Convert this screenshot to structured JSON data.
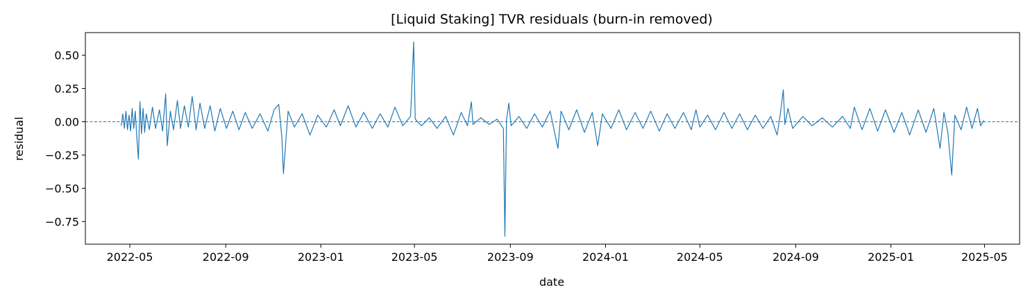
{
  "chart_data": {
    "type": "line",
    "title": "[Liquid Staking] TVR residuals (burn-in removed)",
    "xlabel": "date",
    "ylabel": "residual",
    "x_range": [
      "2022-03-05",
      "2025-06-15"
    ],
    "ylim": [
      -0.92,
      0.67
    ],
    "x_ticks": [
      "2022-05-01",
      "2022-09-01",
      "2023-01-01",
      "2023-05-01",
      "2023-09-01",
      "2024-01-01",
      "2024-05-01",
      "2024-09-01",
      "2025-01-01",
      "2025-05-01"
    ],
    "x_tick_labels": [
      "2022-05",
      "2022-09",
      "2023-01",
      "2023-05",
      "2023-09",
      "2024-01",
      "2024-05",
      "2024-09",
      "2025-01",
      "2025-05"
    ],
    "y_ticks": [
      0.5,
      0.25,
      0.0,
      -0.25,
      -0.5,
      -0.75
    ],
    "y_tick_labels": [
      "0.50",
      "0.25",
      "0.00",
      "−0.25",
      "−0.50",
      "−0.75"
    ],
    "grid": false,
    "reference_line": {
      "y": 0,
      "style": "dashed",
      "color": "#1f77b4"
    },
    "series": [
      {
        "color": "#1f77b4",
        "points": [
          [
            "2022-04-20",
            -0.03
          ],
          [
            "2022-04-22",
            0.06
          ],
          [
            "2022-04-24",
            -0.05
          ],
          [
            "2022-04-26",
            0.08
          ],
          [
            "2022-04-28",
            -0.06
          ],
          [
            "2022-04-30",
            0.05
          ],
          [
            "2022-05-02",
            -0.07
          ],
          [
            "2022-05-04",
            0.1
          ],
          [
            "2022-05-06",
            -0.05
          ],
          [
            "2022-05-08",
            0.08
          ],
          [
            "2022-05-10",
            -0.12
          ],
          [
            "2022-05-12",
            -0.28
          ],
          [
            "2022-05-14",
            0.15
          ],
          [
            "2022-05-16",
            -0.09
          ],
          [
            "2022-05-18",
            0.1
          ],
          [
            "2022-05-20",
            -0.08
          ],
          [
            "2022-05-22",
            0.06
          ],
          [
            "2022-05-26",
            -0.06
          ],
          [
            "2022-05-30",
            0.11
          ],
          [
            "2022-06-03",
            -0.05
          ],
          [
            "2022-06-08",
            0.09
          ],
          [
            "2022-06-12",
            -0.07
          ],
          [
            "2022-06-16",
            0.21
          ],
          [
            "2022-06-18",
            -0.18
          ],
          [
            "2022-06-22",
            0.08
          ],
          [
            "2022-06-26",
            -0.06
          ],
          [
            "2022-07-01",
            0.16
          ],
          [
            "2022-07-05",
            -0.05
          ],
          [
            "2022-07-10",
            0.12
          ],
          [
            "2022-07-15",
            -0.04
          ],
          [
            "2022-07-20",
            0.19
          ],
          [
            "2022-07-25",
            -0.06
          ],
          [
            "2022-07-30",
            0.14
          ],
          [
            "2022-08-05",
            -0.05
          ],
          [
            "2022-08-12",
            0.12
          ],
          [
            "2022-08-18",
            -0.07
          ],
          [
            "2022-08-25",
            0.1
          ],
          [
            "2022-09-02",
            -0.05
          ],
          [
            "2022-09-10",
            0.08
          ],
          [
            "2022-09-18",
            -0.06
          ],
          [
            "2022-09-26",
            0.07
          ],
          [
            "2022-10-05",
            -0.05
          ],
          [
            "2022-10-15",
            0.06
          ],
          [
            "2022-10-25",
            -0.07
          ],
          [
            "2022-11-02",
            0.09
          ],
          [
            "2022-11-08",
            0.13
          ],
          [
            "2022-11-12",
            -0.12
          ],
          [
            "2022-11-14",
            -0.39
          ],
          [
            "2022-11-17",
            -0.15
          ],
          [
            "2022-11-20",
            0.08
          ],
          [
            "2022-11-28",
            -0.04
          ],
          [
            "2022-12-08",
            0.06
          ],
          [
            "2022-12-18",
            -0.1
          ],
          [
            "2022-12-28",
            0.05
          ],
          [
            "2023-01-08",
            -0.04
          ],
          [
            "2023-01-18",
            0.09
          ],
          [
            "2023-01-26",
            -0.03
          ],
          [
            "2023-02-05",
            0.12
          ],
          [
            "2023-02-15",
            -0.04
          ],
          [
            "2023-02-25",
            0.07
          ],
          [
            "2023-03-08",
            -0.05
          ],
          [
            "2023-03-18",
            0.06
          ],
          [
            "2023-03-28",
            -0.04
          ],
          [
            "2023-04-06",
            0.11
          ],
          [
            "2023-04-16",
            -0.03
          ],
          [
            "2023-04-26",
            0.04
          ],
          [
            "2023-04-30",
            0.6
          ],
          [
            "2023-05-02",
            0.02
          ],
          [
            "2023-05-10",
            -0.03
          ],
          [
            "2023-05-20",
            0.03
          ],
          [
            "2023-05-30",
            -0.05
          ],
          [
            "2023-06-10",
            0.04
          ],
          [
            "2023-06-20",
            -0.1
          ],
          [
            "2023-06-30",
            0.07
          ],
          [
            "2023-07-08",
            -0.03
          ],
          [
            "2023-07-13",
            0.15
          ],
          [
            "2023-07-15",
            -0.02
          ],
          [
            "2023-07-25",
            0.03
          ],
          [
            "2023-08-05",
            -0.02
          ],
          [
            "2023-08-15",
            0.02
          ],
          [
            "2023-08-23",
            -0.05
          ],
          [
            "2023-08-25",
            -0.86
          ],
          [
            "2023-08-27",
            0.01
          ],
          [
            "2023-08-30",
            0.14
          ],
          [
            "2023-09-02",
            -0.03
          ],
          [
            "2023-09-12",
            0.04
          ],
          [
            "2023-09-22",
            -0.05
          ],
          [
            "2023-10-02",
            0.06
          ],
          [
            "2023-10-12",
            -0.04
          ],
          [
            "2023-10-22",
            0.08
          ],
          [
            "2023-11-01",
            -0.2
          ],
          [
            "2023-11-05",
            0.08
          ],
          [
            "2023-11-15",
            -0.06
          ],
          [
            "2023-11-25",
            0.09
          ],
          [
            "2023-12-05",
            -0.08
          ],
          [
            "2023-12-15",
            0.07
          ],
          [
            "2023-12-22",
            -0.18
          ],
          [
            "2023-12-28",
            0.06
          ],
          [
            "2024-01-08",
            -0.05
          ],
          [
            "2024-01-18",
            0.09
          ],
          [
            "2024-01-28",
            -0.06
          ],
          [
            "2024-02-08",
            0.07
          ],
          [
            "2024-02-18",
            -0.05
          ],
          [
            "2024-02-28",
            0.08
          ],
          [
            "2024-03-10",
            -0.07
          ],
          [
            "2024-03-20",
            0.06
          ],
          [
            "2024-03-30",
            -0.05
          ],
          [
            "2024-04-10",
            0.07
          ],
          [
            "2024-04-20",
            -0.06
          ],
          [
            "2024-04-26",
            0.09
          ],
          [
            "2024-05-01",
            -0.04
          ],
          [
            "2024-05-11",
            0.05
          ],
          [
            "2024-05-21",
            -0.06
          ],
          [
            "2024-06-01",
            0.07
          ],
          [
            "2024-06-11",
            -0.05
          ],
          [
            "2024-06-21",
            0.06
          ],
          [
            "2024-07-01",
            -0.06
          ],
          [
            "2024-07-11",
            0.05
          ],
          [
            "2024-07-21",
            -0.05
          ],
          [
            "2024-07-31",
            0.04
          ],
          [
            "2024-08-08",
            -0.1
          ],
          [
            "2024-08-12",
            0.05
          ],
          [
            "2024-08-16",
            0.24
          ],
          [
            "2024-08-18",
            -0.02
          ],
          [
            "2024-08-22",
            0.1
          ],
          [
            "2024-08-28",
            -0.05
          ],
          [
            "2024-09-10",
            0.04
          ],
          [
            "2024-09-22",
            -0.03
          ],
          [
            "2024-10-05",
            0.03
          ],
          [
            "2024-10-18",
            -0.04
          ],
          [
            "2024-10-31",
            0.04
          ],
          [
            "2024-11-10",
            -0.05
          ],
          [
            "2024-11-15",
            0.11
          ],
          [
            "2024-11-25",
            -0.06
          ],
          [
            "2024-12-05",
            0.1
          ],
          [
            "2024-12-15",
            -0.07
          ],
          [
            "2024-12-25",
            0.09
          ],
          [
            "2025-01-05",
            -0.08
          ],
          [
            "2025-01-15",
            0.07
          ],
          [
            "2025-01-25",
            -0.1
          ],
          [
            "2025-02-05",
            0.09
          ],
          [
            "2025-02-15",
            -0.08
          ],
          [
            "2025-02-25",
            0.1
          ],
          [
            "2025-03-05",
            -0.2
          ],
          [
            "2025-03-10",
            0.07
          ],
          [
            "2025-03-15",
            -0.08
          ],
          [
            "2025-03-20",
            -0.4
          ],
          [
            "2025-03-24",
            0.05
          ],
          [
            "2025-04-01",
            -0.06
          ],
          [
            "2025-04-08",
            0.11
          ],
          [
            "2025-04-15",
            -0.05
          ],
          [
            "2025-04-22",
            0.1
          ],
          [
            "2025-04-26",
            -0.03
          ],
          [
            "2025-04-30",
            0.01
          ]
        ]
      }
    ]
  }
}
